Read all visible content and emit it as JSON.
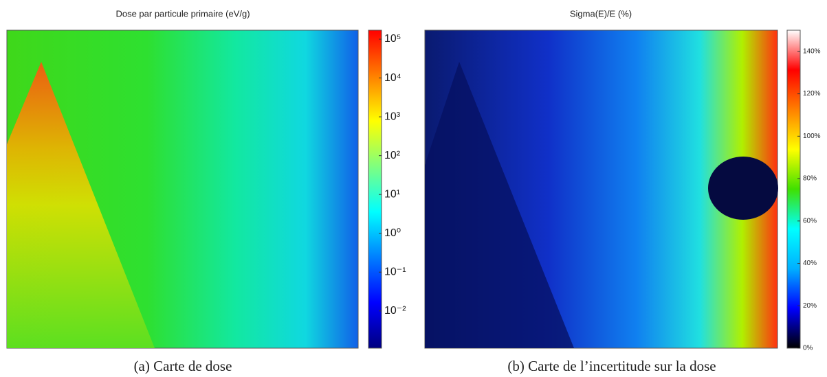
{
  "chart_data": [
    {
      "type": "heatmap",
      "title": "Dose par particule primaire (eV/g)",
      "caption": "(a) Carte de dose",
      "colormap": "jet",
      "scale": "log",
      "ylim": [
        0.0011,
        170000
      ],
      "yticks": [
        {
          "value": 0.01,
          "label": "10⁻²"
        },
        {
          "value": 0.1,
          "label": "10⁻¹"
        },
        {
          "value": 1,
          "label": "10⁰"
        },
        {
          "value": 10,
          "label": "10¹"
        },
        {
          "value": 100,
          "label": "10²"
        },
        {
          "value": 1000,
          "label": "10³"
        },
        {
          "value": 10000,
          "label": "10⁴"
        },
        {
          "value": 100000,
          "label": "10⁵"
        }
      ]
    },
    {
      "type": "heatmap",
      "title": "Sigma(E)/E (%)",
      "caption": "(b) Carte de l’incertitude sur la dose",
      "colormap": "jet-white",
      "scale": "linear",
      "ylim": [
        0,
        150
      ],
      "yticks": [
        {
          "value": 0,
          "label": "0%"
        },
        {
          "value": 20,
          "label": "20%"
        },
        {
          "value": 40,
          "label": "40%"
        },
        {
          "value": 60,
          "label": "60%"
        },
        {
          "value": 80,
          "label": "80%"
        },
        {
          "value": 100,
          "label": "100%"
        },
        {
          "value": 120,
          "label": "120%"
        },
        {
          "value": 140,
          "label": "140%"
        }
      ]
    }
  ]
}
